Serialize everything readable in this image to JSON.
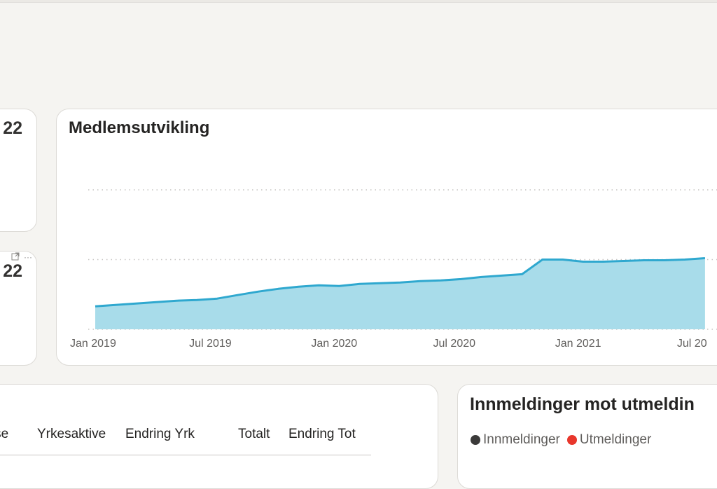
{
  "kpi_cards": [
    {
      "value": "22"
    },
    {
      "value": "22",
      "header_icons": [
        "focus-mode-icon",
        "more-options-icon"
      ],
      "header_more_label": "···"
    }
  ],
  "member_chart": {
    "title": "Medlemsutvikling"
  },
  "chart_data": {
    "type": "area",
    "title": "Medlemsutvikling",
    "xlabel": "",
    "ylabel": "",
    "x_tick_labels": [
      "Jan 2019",
      "Jul 2019",
      "Jan 2020",
      "Jul 2020",
      "Jan 2021",
      "Jul 20"
    ],
    "x": [
      "2019-01",
      "2019-02",
      "2019-03",
      "2019-04",
      "2019-05",
      "2019-06",
      "2019-07",
      "2019-08",
      "2019-09",
      "2019-10",
      "2019-11",
      "2019-12",
      "2020-01",
      "2020-02",
      "2020-03",
      "2020-04",
      "2020-05",
      "2020-06",
      "2020-07",
      "2020-08",
      "2020-09",
      "2020-10",
      "2020-11",
      "2020-12",
      "2021-01",
      "2021-02",
      "2021-03",
      "2021-04",
      "2021-05",
      "2021-06",
      "2021-07"
    ],
    "series": [
      {
        "values": [
          33,
          35,
          37,
          39,
          41,
          42,
          44,
          49,
          54,
          58,
          61,
          63,
          62,
          65,
          66,
          67,
          69,
          70,
          72,
          75,
          77,
          79,
          100,
          100,
          97,
          97,
          98,
          99,
          99,
          100,
          102
        ]
      }
    ],
    "y_gridlines": [
      0,
      100,
      200
    ],
    "grid": true,
    "legend": "none",
    "color": "#2fa8cf",
    "fill_color": "#a8dcea"
  },
  "members_table": {
    "columns": [
      "anse",
      "Yrkesaktive",
      "Endring Yrk",
      "Totalt",
      "Endring Tot"
    ]
  },
  "in_out_chart": {
    "title": "Innmeldinger mot utmeldin",
    "legend": [
      {
        "label": "Innmeldinger",
        "color": "#3b3a39"
      },
      {
        "label": "Utmeldinger",
        "color": "#e8372c"
      }
    ]
  }
}
